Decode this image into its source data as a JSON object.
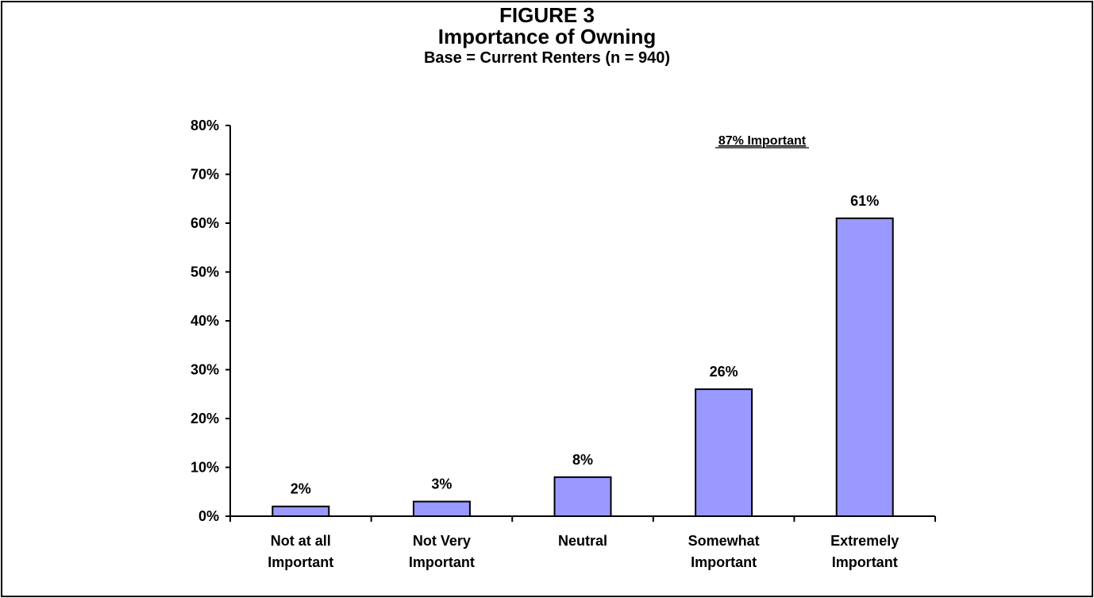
{
  "chart_data": {
    "type": "bar",
    "title": "FIGURE 3",
    "subtitle": "Importance of Owning",
    "subtitle2": "Base = Current Renters (n = 940)",
    "categories": [
      [
        "Not at all",
        "Important"
      ],
      [
        "Not Very",
        "Important"
      ],
      [
        "Neutral"
      ],
      [
        "Somewhat",
        "Important"
      ],
      [
        "Extremely",
        "Important"
      ]
    ],
    "values": [
      2,
      3,
      8,
      26,
      61
    ],
    "data_labels": [
      "2%",
      "3%",
      "8%",
      "26%",
      "61%"
    ],
    "y_ticks": [
      "0%",
      "10%",
      "20%",
      "30%",
      "40%",
      "50%",
      "60%",
      "70%",
      "80%"
    ],
    "ylim": [
      0,
      80
    ],
    "annotation": "87% Important",
    "bar_color": "#9999ff",
    "grid": false,
    "legend": "none"
  }
}
